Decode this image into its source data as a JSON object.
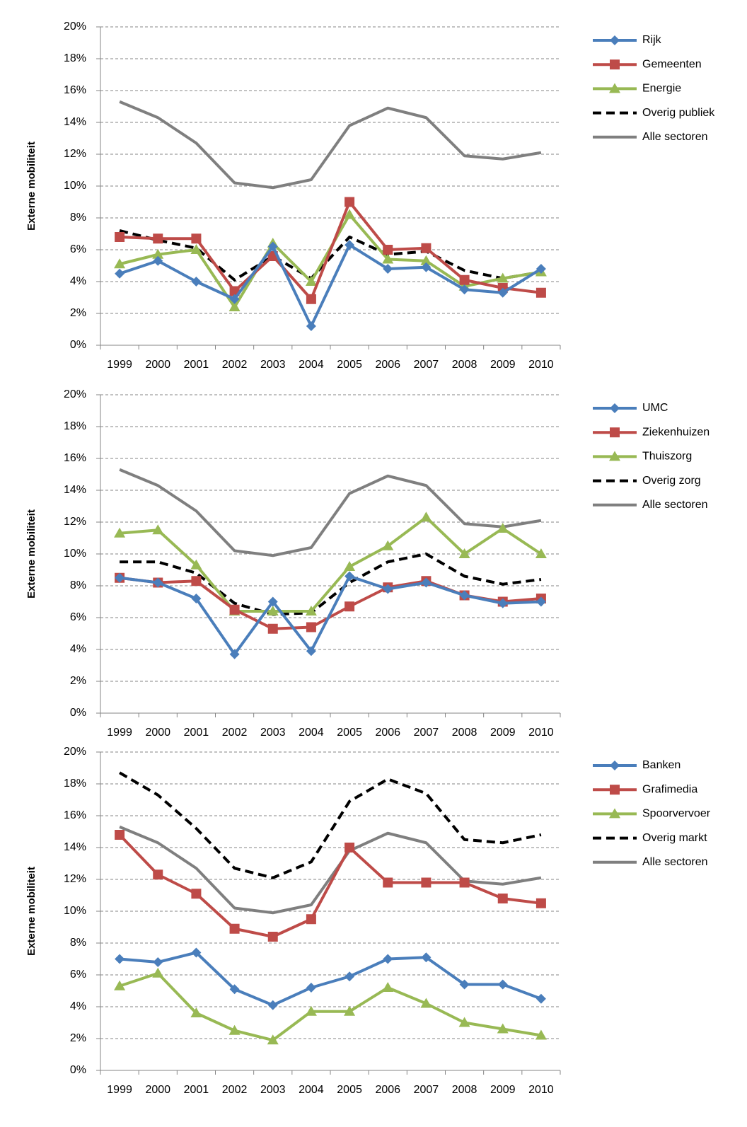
{
  "chart_data": [
    {
      "type": "line",
      "ylabel": "Externe mobiliteit",
      "categories": [
        "1999",
        "2000",
        "2001",
        "2002",
        "2003",
        "2004",
        "2005",
        "2006",
        "2007",
        "2008",
        "2009",
        "2010"
      ],
      "ylim": [
        0,
        20
      ],
      "yticks": [
        {
          "value": 0,
          "label": "0%"
        },
        {
          "value": 2,
          "label": "2%"
        },
        {
          "value": 4,
          "label": "4%"
        },
        {
          "value": 6,
          "label": "6%"
        },
        {
          "value": 8,
          "label": "8%"
        },
        {
          "value": 10,
          "label": "10%"
        },
        {
          "value": 12,
          "label": "12%"
        },
        {
          "value": 14,
          "label": "14%"
        },
        {
          "value": 16,
          "label": "16%"
        },
        {
          "value": 18,
          "label": "18%"
        },
        {
          "value": 20,
          "label": "20%"
        }
      ],
      "grid": true,
      "series": [
        {
          "name": "Rijk",
          "color": "#4a7ebb",
          "marker": "diamond",
          "values": [
            4.5,
            5.3,
            4.0,
            2.9,
            6.2,
            1.2,
            6.3,
            4.8,
            4.9,
            3.5,
            3.3,
            4.8
          ]
        },
        {
          "name": "Gemeenten",
          "color": "#be4b48",
          "marker": "square",
          "values": [
            6.8,
            6.7,
            6.7,
            3.4,
            5.6,
            2.9,
            9.0,
            6.0,
            6.1,
            4.1,
            3.6,
            3.3
          ]
        },
        {
          "name": "Energie",
          "color": "#98b954",
          "marker": "triangle",
          "values": [
            5.1,
            5.7,
            6.0,
            2.4,
            6.4,
            4.0,
            8.2,
            5.4,
            5.3,
            3.7,
            4.2,
            4.6
          ]
        },
        {
          "name": "Overig publiek",
          "color": "#000000",
          "dashed": true,
          "values": [
            7.2,
            6.6,
            6.1,
            4.1,
            5.6,
            4.2,
            6.8,
            5.7,
            5.9,
            4.7,
            4.2,
            4.6
          ]
        },
        {
          "name": "Alle sectoren",
          "color": "#7f7f7f",
          "values": [
            15.3,
            14.3,
            12.7,
            10.2,
            9.9,
            10.4,
            13.8,
            14.9,
            14.3,
            11.9,
            11.7,
            12.1
          ]
        }
      ]
    },
    {
      "type": "line",
      "ylabel": "Externe mobiliteit",
      "categories": [
        "1999",
        "2000",
        "2001",
        "2002",
        "2003",
        "2004",
        "2005",
        "2006",
        "2007",
        "2008",
        "2009",
        "2010"
      ],
      "ylim": [
        0,
        20
      ],
      "yticks": [
        {
          "value": 0,
          "label": "0%"
        },
        {
          "value": 2,
          "label": "2%"
        },
        {
          "value": 4,
          "label": "4%"
        },
        {
          "value": 6,
          "label": "6%"
        },
        {
          "value": 8,
          "label": "8%"
        },
        {
          "value": 10,
          "label": "10%"
        },
        {
          "value": 12,
          "label": "12%"
        },
        {
          "value": 14,
          "label": "14%"
        },
        {
          "value": 16,
          "label": "16%"
        },
        {
          "value": 18,
          "label": "18%"
        },
        {
          "value": 20,
          "label": "20%"
        }
      ],
      "grid": true,
      "series": [
        {
          "name": "UMC",
          "color": "#4a7ebb",
          "marker": "diamond",
          "values": [
            8.5,
            8.2,
            7.2,
            3.7,
            7.0,
            3.9,
            8.6,
            7.8,
            8.2,
            7.4,
            6.9,
            7.0
          ]
        },
        {
          "name": "Ziekenhuizen",
          "color": "#be4b48",
          "marker": "square",
          "values": [
            8.5,
            8.2,
            8.3,
            6.5,
            5.3,
            5.4,
            6.7,
            7.9,
            8.3,
            7.4,
            7.0,
            7.2
          ]
        },
        {
          "name": "Thuiszorg",
          "color": "#98b954",
          "marker": "triangle",
          "values": [
            11.3,
            11.5,
            9.3,
            6.4,
            6.4,
            6.4,
            9.2,
            10.5,
            12.3,
            10.0,
            11.6,
            10.0
          ]
        },
        {
          "name": "Overig zorg",
          "color": "#000000",
          "dashed": true,
          "values": [
            9.5,
            9.5,
            8.8,
            6.9,
            6.2,
            6.3,
            8.2,
            9.5,
            10.0,
            8.6,
            8.1,
            8.4
          ]
        },
        {
          "name": "Alle sectoren",
          "color": "#7f7f7f",
          "values": [
            15.3,
            14.3,
            12.7,
            10.2,
            9.9,
            10.4,
            13.8,
            14.9,
            14.3,
            11.9,
            11.7,
            12.1
          ]
        }
      ]
    },
    {
      "type": "line",
      "ylabel": "Externe mobiliteit",
      "categories": [
        "1999",
        "2000",
        "2001",
        "2002",
        "2003",
        "2004",
        "2005",
        "2006",
        "2007",
        "2008",
        "2009",
        "2010"
      ],
      "ylim": [
        0,
        20
      ],
      "yticks": [
        {
          "value": 0,
          "label": "0%"
        },
        {
          "value": 2,
          "label": "2%"
        },
        {
          "value": 4,
          "label": "4%"
        },
        {
          "value": 6,
          "label": "6%"
        },
        {
          "value": 8,
          "label": "8%"
        },
        {
          "value": 10,
          "label": "10%"
        },
        {
          "value": 12,
          "label": "12%"
        },
        {
          "value": 14,
          "label": "14%"
        },
        {
          "value": 16,
          "label": "16%"
        },
        {
          "value": 18,
          "label": "18%"
        },
        {
          "value": 20,
          "label": "20%"
        }
      ],
      "grid": true,
      "series": [
        {
          "name": "Banken",
          "color": "#4a7ebb",
          "marker": "diamond",
          "values": [
            7.0,
            6.8,
            7.4,
            5.1,
            4.1,
            5.2,
            5.9,
            7.0,
            7.1,
            5.4,
            5.4,
            4.5
          ]
        },
        {
          "name": "Grafimedia",
          "color": "#be4b48",
          "marker": "square",
          "values": [
            14.8,
            12.3,
            11.1,
            8.9,
            8.4,
            9.5,
            14.0,
            11.8,
            11.8,
            11.8,
            10.8,
            10.5
          ]
        },
        {
          "name": "Spoorvervoer",
          "color": "#98b954",
          "marker": "triangle",
          "values": [
            5.3,
            6.1,
            3.6,
            2.5,
            1.9,
            3.7,
            3.7,
            5.2,
            4.2,
            3.0,
            2.6,
            2.2
          ]
        },
        {
          "name": "Overig markt",
          "color": "#000000",
          "dashed": true,
          "values": [
            18.7,
            17.3,
            15.2,
            12.7,
            12.1,
            13.1,
            16.9,
            18.3,
            17.4,
            14.5,
            14.3,
            14.8
          ]
        },
        {
          "name": "Alle sectoren",
          "color": "#7f7f7f",
          "values": [
            15.3,
            14.3,
            12.7,
            10.2,
            9.9,
            10.4,
            13.8,
            14.9,
            14.3,
            11.9,
            11.7,
            12.1
          ]
        }
      ]
    }
  ]
}
